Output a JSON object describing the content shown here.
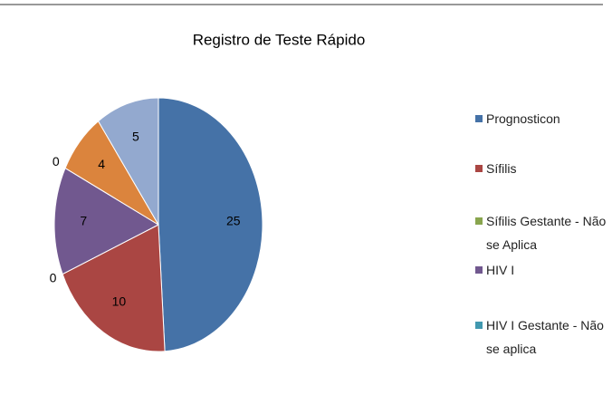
{
  "chart_data": {
    "type": "pie",
    "title": "Registro de Teste Rápido",
    "categories": [
      "Prognosticon",
      "Sífilis",
      "Sífilis Gestante - Não se Aplica",
      "HIV I",
      "HIV I Gestante - Não se aplica",
      null,
      null
    ],
    "values": [
      25,
      10,
      0,
      7,
      0,
      4,
      5
    ],
    "colors": [
      "#4572a7",
      "#aa4643",
      "#89a54e",
      "#71588f",
      "#4198af",
      "#db843d",
      "#93a9cf"
    ],
    "legend": "right"
  }
}
